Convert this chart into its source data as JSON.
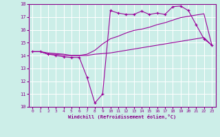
{
  "xlabel": "Windchill (Refroidissement éolien,°C)",
  "bg_color": "#cceee8",
  "line_color": "#990099",
  "xlim": [
    -0.5,
    23.5
  ],
  "ylim": [
    10,
    18
  ],
  "xticks": [
    0,
    1,
    2,
    3,
    4,
    5,
    6,
    7,
    8,
    9,
    10,
    11,
    12,
    13,
    14,
    15,
    16,
    17,
    18,
    19,
    20,
    21,
    22,
    23
  ],
  "yticks": [
    10,
    11,
    12,
    13,
    14,
    15,
    16,
    17,
    18
  ],
  "series1_x": [
    0,
    1,
    2,
    3,
    4,
    5,
    6,
    7,
    8,
    9,
    10,
    11,
    12,
    13,
    14,
    15,
    16,
    17,
    18,
    19,
    20,
    21,
    22,
    23
  ],
  "series1_y": [
    14.3,
    14.3,
    14.1,
    14.1,
    14.0,
    14.0,
    14.0,
    14.0,
    14.1,
    14.15,
    14.2,
    14.3,
    14.4,
    14.5,
    14.6,
    14.7,
    14.8,
    14.9,
    15.0,
    15.1,
    15.2,
    15.3,
    15.4,
    14.8
  ],
  "series2_x": [
    0,
    1,
    2,
    3,
    4,
    5,
    6,
    7,
    8,
    9,
    10,
    11,
    12,
    13,
    14,
    15,
    16,
    17,
    18,
    19,
    20,
    21,
    22,
    23
  ],
  "series2_y": [
    14.3,
    14.3,
    14.2,
    14.15,
    14.1,
    14.0,
    14.0,
    14.1,
    14.4,
    14.9,
    15.3,
    15.5,
    15.75,
    15.95,
    16.05,
    16.2,
    16.4,
    16.55,
    16.75,
    16.95,
    17.05,
    17.15,
    17.25,
    14.85
  ],
  "series3_x": [
    0,
    1,
    2,
    3,
    4,
    5,
    6,
    7,
    8,
    9,
    10,
    11,
    12,
    13,
    14,
    15,
    16,
    17,
    18,
    19,
    20,
    21,
    22,
    23
  ],
  "series3_y": [
    14.3,
    14.3,
    14.1,
    14.0,
    13.9,
    13.85,
    13.85,
    12.3,
    10.3,
    11.0,
    17.5,
    17.3,
    17.2,
    17.2,
    17.45,
    17.2,
    17.3,
    17.2,
    17.8,
    17.85,
    17.5,
    16.4,
    15.3,
    14.8
  ]
}
